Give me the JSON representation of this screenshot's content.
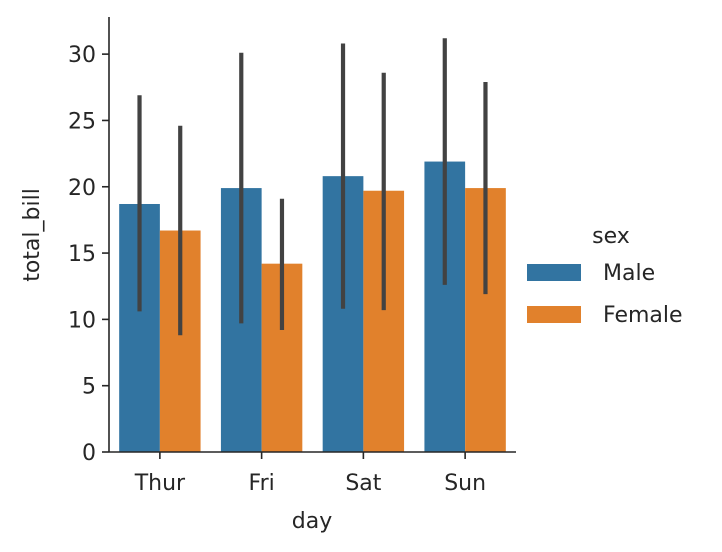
{
  "chart_data": {
    "type": "bar",
    "categories": [
      "Thur",
      "Fri",
      "Sat",
      "Sun"
    ],
    "series": [
      {
        "name": "Male",
        "color": "#3274a1",
        "values": [
          18.7,
          19.9,
          20.8,
          21.9
        ],
        "error_low": [
          10.6,
          9.7,
          10.8,
          12.6
        ],
        "error_high": [
          26.9,
          30.1,
          30.8,
          31.2
        ]
      },
      {
        "name": "Female",
        "color": "#e1812c",
        "values": [
          16.7,
          14.2,
          19.7,
          19.9
        ],
        "error_low": [
          8.8,
          9.2,
          10.7,
          11.9
        ],
        "error_high": [
          24.6,
          19.1,
          28.6,
          27.9
        ]
      }
    ],
    "xlabel": "day",
    "ylabel": "total_bill",
    "ylim": [
      0,
      32.8
    ],
    "yticks": [
      0,
      5,
      10,
      15,
      20,
      25,
      30
    ],
    "error_bar_color": "#424242",
    "legend": {
      "title": "sex",
      "placement": "right"
    },
    "grid": false
  }
}
